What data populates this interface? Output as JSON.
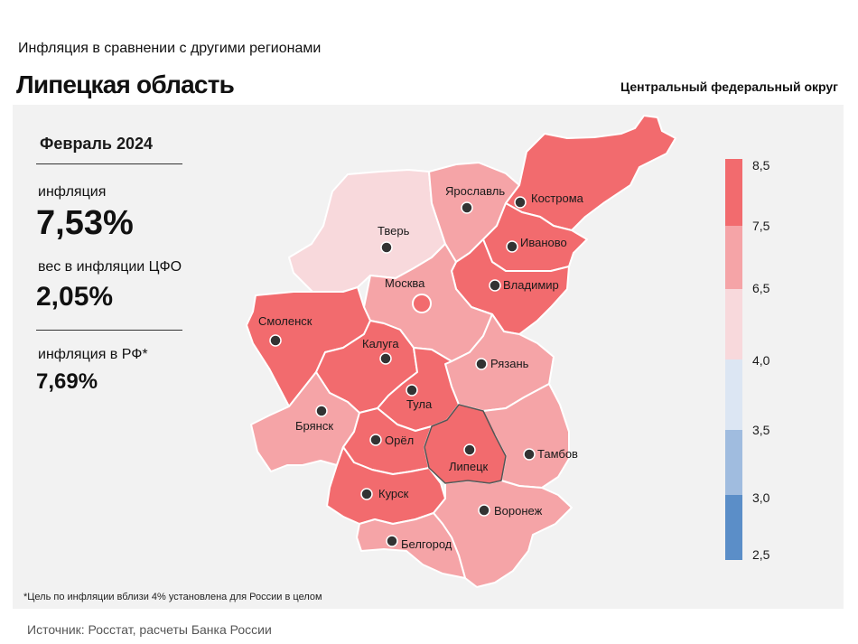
{
  "header": {
    "subtitle": "Инфляция  в сравнении  с другими  регионами",
    "title": "Липецкая область",
    "district": "Центральный федеральный округ"
  },
  "stats": {
    "period": "Февраль 2024",
    "inflation_label": "инфляция",
    "inflation_value": "7,53%",
    "weight_label": "вес в инфляции  ЦФО",
    "weight_value": "2,05%",
    "rf_label": "инфляция  в РФ*",
    "rf_value": "7,69%"
  },
  "footnote": "*Цель по инфляции вблизи 4% установлена для России в целом",
  "source": "Источник: Росстат, расчеты Банка России",
  "colors": {
    "c_8": "#f26b6e",
    "c_7": "#f5a4a7",
    "c_6": "#f8d9dc",
    "c_4": "#dce6f3",
    "c_35": "#a0bcdf",
    "c_3": "#5b8ec8"
  },
  "legend": {
    "ticks": [
      "8,5",
      "7,5",
      "6,5",
      "4,0",
      "3,5",
      "3,0",
      "2,5"
    ]
  },
  "regions": [
    {
      "name": "Ярославль",
      "class": "7,5–6,5"
    },
    {
      "name": "Кострома",
      "class": "8,5–7,5"
    },
    {
      "name": "Тверь",
      "class": "6,5–4,0"
    },
    {
      "name": "Иваново",
      "class": "8,5–7,5"
    },
    {
      "name": "Москва",
      "class": "7,5–6,5"
    },
    {
      "name": "Владимир",
      "class": "8,5–7,5"
    },
    {
      "name": "Смоленск",
      "class": "8,5–7,5"
    },
    {
      "name": "Калуга",
      "class": "8,5–7,5"
    },
    {
      "name": "Рязань",
      "class": "7,5–6,5"
    },
    {
      "name": "Тула",
      "class": "8,5–7,5"
    },
    {
      "name": "Брянск",
      "class": "7,5–6,5"
    },
    {
      "name": "Орёл",
      "class": "8,5–7,5"
    },
    {
      "name": "Тамбов",
      "class": "7,5–6,5"
    },
    {
      "name": "Липецк",
      "class": "8,5–7,5"
    },
    {
      "name": "Курск",
      "class": "8,5–7,5"
    },
    {
      "name": "Воронеж",
      "class": "7,5–6,5"
    },
    {
      "name": "Белгород",
      "class": "7,5–6,5"
    }
  ]
}
